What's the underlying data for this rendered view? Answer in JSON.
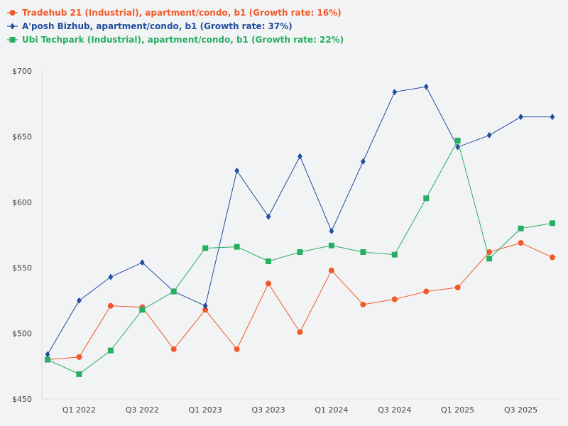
{
  "chart_data": {
    "type": "line",
    "title": "",
    "xlabel": "",
    "ylabel": "",
    "ylim": [
      450,
      700
    ],
    "y_ticks": [
      450,
      500,
      550,
      600,
      650,
      700
    ],
    "y_tick_labels": [
      "$450",
      "$500",
      "$550",
      "$600",
      "$650",
      "$700"
    ],
    "x_tick_labels": [
      "Q1 2022",
      "Q3 2022",
      "Q1 2023",
      "Q3 2023",
      "Q1 2024",
      "Q3 2024",
      "Q1 2025",
      "Q3 2025"
    ],
    "x_tick_positions": [
      1,
      3,
      5,
      7,
      9,
      11,
      13,
      15
    ],
    "x_points": 17,
    "grid": false,
    "legend_position": "top-left",
    "series": [
      {
        "name": "Tradehub 21 (Industrial), apartment/condo, b1 (Growth rate: 16%)",
        "color": "#f05a28",
        "marker": "circle",
        "values": [
          480,
          482,
          521,
          520,
          488,
          518,
          488,
          538,
          501,
          548,
          522,
          526,
          532,
          535,
          562,
          569,
          558
        ]
      },
      {
        "name": "A'posh Bizhub, apartment/condo, b1 (Growth rate: 37%)",
        "color": "#1f4e9e",
        "marker": "diamond",
        "values": [
          484,
          525,
          543,
          554,
          532,
          521,
          624,
          589,
          635,
          578,
          631,
          684,
          688,
          642,
          651,
          665,
          665
        ]
      },
      {
        "name": "Ubi Techpark (Industrial), apartment/condo, b1 (Growth rate: 22%)",
        "color": "#27ae60",
        "marker": "square",
        "values": [
          480,
          469,
          487,
          518,
          532,
          565,
          566,
          555,
          562,
          567,
          562,
          560,
          603,
          647,
          557,
          580,
          584
        ]
      }
    ]
  }
}
